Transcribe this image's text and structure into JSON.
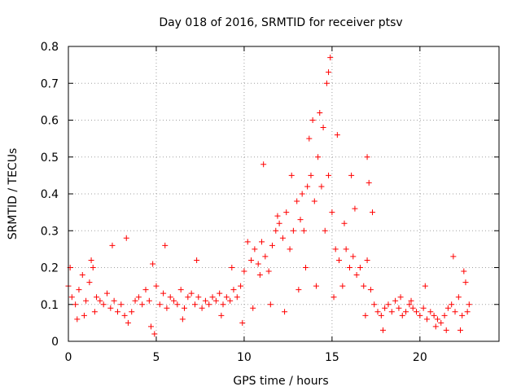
{
  "chart_data": {
    "type": "scatter",
    "title": "Day 018 of 2016, SRMTID for receiver ptsv",
    "xlabel": "GPS time / hours",
    "ylabel": "SRMTID / TECUs",
    "xlim": [
      0,
      24.5
    ],
    "ylim": [
      0,
      0.8
    ],
    "xticks": [
      "0",
      "5",
      "10",
      "15",
      "20"
    ],
    "yticks": [
      "0",
      "0.1",
      "0.2",
      "0.3",
      "0.4",
      "0.5",
      "0.6",
      "0.7",
      "0.8"
    ],
    "grid": true,
    "marker": "+",
    "series": [
      {
        "name": "SRMTID",
        "color": "#ff0000",
        "x": [
          0.0,
          0.2,
          0.4,
          0.6,
          0.8,
          1.0,
          1.2,
          1.4,
          1.6,
          1.8,
          2.0,
          2.2,
          2.4,
          2.6,
          2.8,
          3.0,
          3.2,
          3.4,
          3.6,
          3.8,
          4.0,
          4.2,
          4.4,
          4.6,
          4.8,
          5.0,
          5.2,
          5.4,
          5.6,
          5.8,
          6.0,
          6.2,
          6.4,
          6.6,
          6.8,
          7.0,
          7.2,
          7.4,
          7.6,
          7.8,
          8.0,
          8.2,
          8.4,
          8.6,
          8.8,
          9.0,
          9.2,
          9.4,
          9.6,
          9.8,
          10.0,
          10.2,
          10.4,
          10.6,
          10.8,
          11.0,
          11.2,
          11.4,
          11.6,
          11.8,
          12.0,
          12.2,
          12.4,
          12.6,
          12.8,
          13.0,
          13.2,
          13.4,
          13.6,
          13.8,
          14.0,
          14.2,
          14.4,
          14.6,
          14.8,
          15.0,
          15.2,
          15.4,
          15.6,
          15.8,
          16.0,
          16.2,
          16.4,
          16.6,
          16.8,
          17.0,
          17.2,
          17.4,
          17.6,
          17.8,
          18.0,
          18.2,
          18.4,
          18.6,
          18.8,
          19.0,
          19.2,
          19.4,
          19.6,
          19.8,
          20.0,
          20.2,
          20.4,
          20.6,
          20.8,
          21.0,
          21.2,
          21.4,
          21.6,
          21.8,
          22.0,
          22.2,
          22.4,
          22.6,
          22.8,
          0.1,
          0.5,
          0.9,
          1.3,
          1.5,
          2.5,
          3.3,
          4.7,
          4.9,
          5.5,
          6.5,
          7.3,
          8.7,
          9.3,
          9.9,
          10.5,
          10.9,
          11.1,
          11.5,
          11.9,
          12.3,
          12.7,
          13.1,
          13.3,
          13.5,
          13.7,
          13.9,
          14.1,
          14.3,
          14.5,
          14.7,
          14.8,
          14.9,
          15.1,
          15.3,
          15.7,
          16.1,
          16.3,
          16.9,
          17.0,
          17.1,
          17.3,
          17.9,
          18.9,
          19.5,
          20.3,
          20.9,
          21.5,
          21.9,
          22.3,
          22.5,
          22.7
        ],
        "y": [
          0.15,
          0.12,
          0.1,
          0.14,
          0.18,
          0.11,
          0.16,
          0.2,
          0.12,
          0.11,
          0.1,
          0.13,
          0.09,
          0.11,
          0.08,
          0.1,
          0.07,
          0.05,
          0.08,
          0.11,
          0.12,
          0.1,
          0.14,
          0.11,
          0.21,
          0.15,
          0.1,
          0.13,
          0.09,
          0.12,
          0.11,
          0.1,
          0.14,
          0.09,
          0.12,
          0.13,
          0.1,
          0.12,
          0.09,
          0.11,
          0.1,
          0.12,
          0.11,
          0.13,
          0.1,
          0.12,
          0.11,
          0.14,
          0.12,
          0.15,
          0.19,
          0.27,
          0.22,
          0.25,
          0.21,
          0.27,
          0.23,
          0.19,
          0.26,
          0.3,
          0.32,
          0.28,
          0.35,
          0.25,
          0.3,
          0.38,
          0.33,
          0.3,
          0.42,
          0.45,
          0.38,
          0.5,
          0.42,
          0.3,
          0.45,
          0.35,
          0.25,
          0.22,
          0.15,
          0.25,
          0.2,
          0.23,
          0.18,
          0.2,
          0.15,
          0.22,
          0.14,
          0.1,
          0.08,
          0.07,
          0.09,
          0.1,
          0.08,
          0.11,
          0.09,
          0.07,
          0.08,
          0.1,
          0.09,
          0.08,
          0.07,
          0.09,
          0.06,
          0.08,
          0.07,
          0.06,
          0.05,
          0.07,
          0.09,
          0.1,
          0.08,
          0.12,
          0.07,
          0.16,
          0.1,
          0.2,
          0.06,
          0.07,
          0.22,
          0.08,
          0.26,
          0.28,
          0.04,
          0.02,
          0.26,
          0.06,
          0.22,
          0.07,
          0.2,
          0.05,
          0.09,
          0.18,
          0.48,
          0.1,
          0.34,
          0.08,
          0.45,
          0.14,
          0.4,
          0.2,
          0.55,
          0.6,
          0.15,
          0.62,
          0.58,
          0.7,
          0.73,
          0.77,
          0.12,
          0.56,
          0.32,
          0.45,
          0.36,
          0.07,
          0.5,
          0.43,
          0.35,
          0.03,
          0.12,
          0.11,
          0.15,
          0.04,
          0.03,
          0.23,
          0.03,
          0.19,
          0.08
        ]
      }
    ]
  }
}
